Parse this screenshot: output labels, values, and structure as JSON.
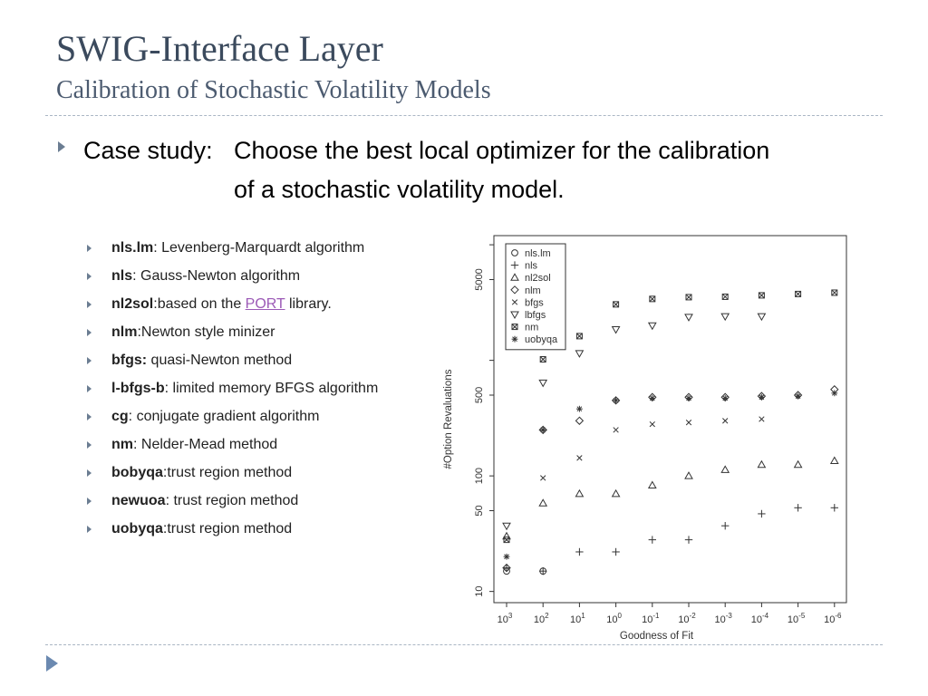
{
  "slide": {
    "title": "SWIG-Interface Layer",
    "subtitle": "Calibration of Stochastic Volatility Models"
  },
  "main_bullet": {
    "lead": "Case study:",
    "line1": "Choose the best local optimizer for the calibration",
    "line2": "of a stochastic volatility model."
  },
  "sub_bullets": [
    {
      "term": "nls.lm",
      "sep": ":",
      "desc": " Levenberg-Marquardt algorithm"
    },
    {
      "term": "nls",
      "sep": ":",
      "desc": " Gauss-Newton algorithm"
    },
    {
      "term": "nl2sol",
      "sep": ":",
      "desc": "based on the ",
      "link": "PORT",
      "desc_after": " library."
    },
    {
      "term": "nlm",
      "sep": ":",
      "desc": "Newton style minizer"
    },
    {
      "term": "bfgs:",
      "sep": "",
      "desc": " quasi-Newton method"
    },
    {
      "term": "l-bfgs-b",
      "sep": ":",
      "desc": " limited memory BFGS algorithm"
    },
    {
      "term": "cg",
      "sep": ":",
      "desc": " conjugate gradient algorithm"
    },
    {
      "term": "nm",
      "sep": ":",
      "desc": " Nelder-Mead method"
    },
    {
      "term": "bobyqa",
      "sep": ":",
      "desc": "trust region method"
    },
    {
      "term": "newuoa",
      "sep": ":",
      "desc": " trust region method"
    },
    {
      "term": "uobyqa",
      "sep": ":",
      "desc": "trust region method"
    }
  ],
  "chart_data": {
    "type": "scatter",
    "xlabel": "Goodness of Fit",
    "ylabel": "#Option Revaluations",
    "x_tick_exponents": [
      3,
      2,
      1,
      0,
      -1,
      -2,
      -3,
      -4,
      -5,
      -6
    ],
    "y_scale": "log",
    "ylim": [
      8,
      12000
    ],
    "y_ticks": [
      10,
      50,
      100,
      500,
      5000
    ],
    "grid": false,
    "legend_position": "top-left",
    "series": [
      {
        "name": "nls.lm",
        "marker": "circle",
        "x": [
          3,
          2
        ],
        "y": [
          15,
          15
        ]
      },
      {
        "name": "nls",
        "marker": "plus",
        "x": [
          3,
          2,
          1,
          0,
          -1,
          -2,
          -3,
          -4,
          -5,
          -6
        ],
        "y": [
          16,
          15,
          22,
          22,
          28,
          28,
          37,
          47,
          53,
          53
        ]
      },
      {
        "name": "nl2sol",
        "marker": "triangle",
        "x": [
          3,
          2,
          1,
          0,
          -1,
          -2,
          -3,
          -4,
          -5,
          -6
        ],
        "y": [
          30,
          58,
          70,
          70,
          83,
          100,
          113,
          125,
          125,
          135
        ]
      },
      {
        "name": "nlm",
        "marker": "diamond",
        "x": [
          3,
          2,
          1,
          0,
          -1,
          -2,
          -3,
          -4,
          -5,
          -6
        ],
        "y": [
          16,
          250,
          300,
          450,
          480,
          480,
          480,
          490,
          500,
          560
        ]
      },
      {
        "name": "bfgs",
        "marker": "cross",
        "x": [
          2,
          1,
          0,
          -1,
          -2,
          -3,
          -4
        ],
        "y": [
          96,
          143,
          250,
          280,
          290,
          300,
          310
        ]
      },
      {
        "name": "lbfgs",
        "marker": "triangle-down",
        "x": [
          3,
          2,
          1,
          0,
          -1,
          -2,
          -3,
          -4
        ],
        "y": [
          37,
          640,
          1150,
          1850,
          2000,
          2370,
          2400,
          2400
        ]
      },
      {
        "name": "nm",
        "marker": "square-x",
        "x": [
          3,
          2,
          1,
          0,
          -1,
          -2,
          -3,
          -4,
          -5,
          -6
        ],
        "y": [
          28,
          1020,
          1620,
          3050,
          3400,
          3520,
          3550,
          3650,
          3750,
          3850
        ]
      },
      {
        "name": "uobyqa",
        "marker": "asterisk",
        "x": [
          3,
          2,
          1,
          0,
          -1,
          -2,
          -3,
          -4,
          -5,
          -6
        ],
        "y": [
          20,
          250,
          380,
          450,
          470,
          470,
          470,
          480,
          490,
          520
        ]
      }
    ]
  }
}
